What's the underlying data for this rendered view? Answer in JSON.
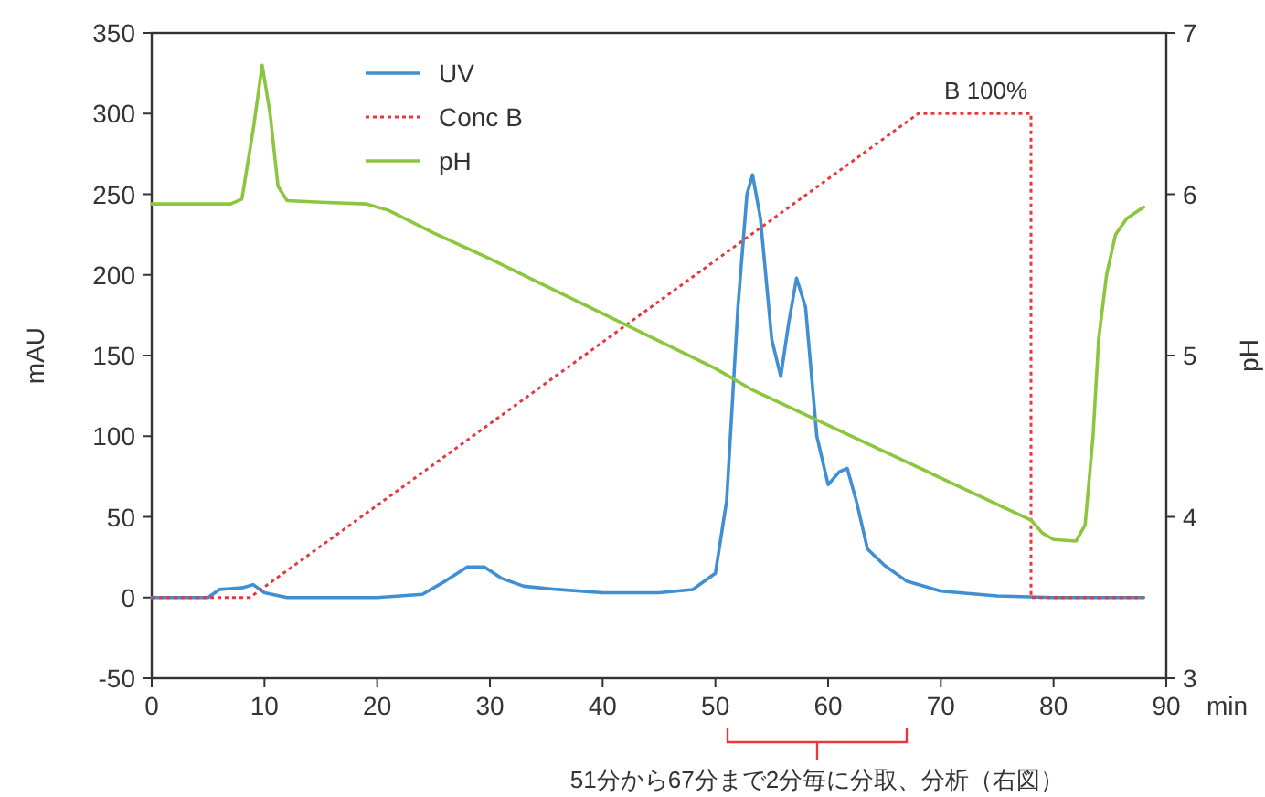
{
  "chart_data": {
    "type": "line",
    "xlabel": "min",
    "ylabel": "mAU",
    "y2label": "pH",
    "xlim": [
      0,
      90
    ],
    "xticks": [
      0,
      10,
      20,
      30,
      40,
      50,
      60,
      70,
      80,
      90
    ],
    "ylim": [
      -50,
      350
    ],
    "yticks": [
      -50,
      0,
      50,
      100,
      150,
      200,
      250,
      300,
      350
    ],
    "y2lim": [
      3,
      7
    ],
    "y2ticks": [
      3,
      4,
      5,
      6,
      7
    ],
    "grid": false,
    "legend": "top left",
    "marker": "none",
    "annotations": [
      {
        "text": "B 100%",
        "x": 74,
        "y": 300
      },
      "51分から67分まで2分毎に分取、分析（右図）"
    ],
    "series": [
      {
        "name": "UV",
        "color": "#3f8fd2",
        "line_style": "solid",
        "x": [
          0,
          5,
          6,
          8,
          9,
          10,
          12,
          20,
          24,
          26,
          28,
          29.5,
          31,
          33,
          36,
          40,
          45,
          48,
          50,
          51,
          52,
          52.8,
          53.3,
          54,
          55,
          55.8,
          56.5,
          57.2,
          58,
          59,
          60,
          61,
          61.7,
          62.5,
          63.5,
          65,
          67,
          70,
          75,
          80,
          88
        ],
        "values": [
          0,
          0,
          5,
          6,
          8,
          3,
          0,
          0,
          2,
          10,
          19,
          19,
          12,
          7,
          5,
          3,
          3,
          5,
          15,
          60,
          180,
          250,
          262,
          235,
          160,
          137,
          170,
          198,
          180,
          100,
          70,
          78,
          80,
          60,
          30,
          20,
          10,
          4,
          1,
          0,
          0
        ]
      },
      {
        "name": "Conc B",
        "color": "#e8383d",
        "line_style": "dotted",
        "x": [
          0,
          8.7,
          68,
          78,
          78,
          88
        ],
        "values": [
          0,
          0,
          300,
          300,
          0,
          0
        ]
      },
      {
        "name": "pH",
        "color": "#8cc63f",
        "line_style": "solid",
        "axis": "y2",
        "x": [
          0,
          7,
          8,
          9,
          9.8,
          10.5,
          11.2,
          12,
          15,
          19,
          21,
          25,
          30,
          50,
          53.2,
          78,
          79,
          80,
          82,
          82.8,
          83.5,
          84,
          84.7,
          85.5,
          86.5,
          88
        ],
        "values": [
          5.94,
          5.94,
          5.97,
          6.4,
          6.8,
          6.5,
          6.05,
          5.96,
          5.95,
          5.94,
          5.9,
          5.76,
          5.6,
          4.92,
          4.79,
          3.98,
          3.9,
          3.86,
          3.85,
          3.95,
          4.5,
          5.1,
          5.5,
          5.75,
          5.85,
          5.92
        ]
      }
    ]
  }
}
